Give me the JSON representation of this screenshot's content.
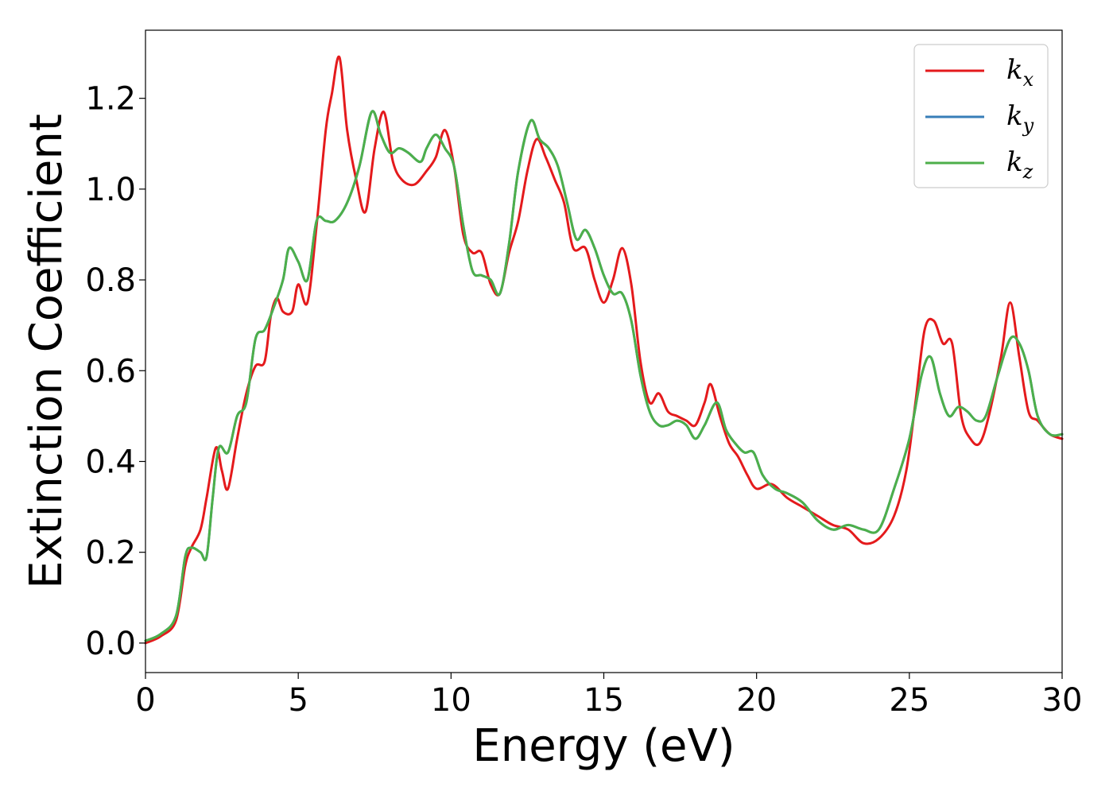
{
  "chart_data": {
    "type": "line",
    "xlabel": "Energy (eV)",
    "ylabel": "Extinction Coefficient",
    "xlim": [
      0,
      30
    ],
    "ylim": [
      -0.065,
      1.35
    ],
    "xticks": [
      0,
      5,
      10,
      15,
      20,
      25,
      30
    ],
    "xtick_labels": [
      "0",
      "5",
      "10",
      "15",
      "20",
      "25",
      "30"
    ],
    "yticks": [
      0.0,
      0.2,
      0.4,
      0.6,
      0.8,
      1.0,
      1.2
    ],
    "ytick_labels": [
      "0.0",
      "0.2",
      "0.4",
      "0.6",
      "0.8",
      "1.0",
      "1.2"
    ],
    "grid": false,
    "legend_position": "top-right",
    "series": [
      {
        "name": "k_x",
        "legend_base": "k",
        "legend_sub": "x",
        "color": "#e41a1c",
        "x": [
          0,
          0.5,
          1.0,
          1.3,
          1.5,
          1.8,
          2.0,
          2.3,
          2.5,
          2.7,
          3.0,
          3.3,
          3.6,
          3.9,
          4.1,
          4.3,
          4.5,
          4.8,
          5.0,
          5.3,
          5.6,
          5.9,
          6.1,
          6.35,
          6.6,
          6.9,
          7.2,
          7.5,
          7.8,
          8.1,
          8.4,
          8.8,
          9.2,
          9.5,
          9.8,
          10.1,
          10.4,
          10.7,
          11.0,
          11.3,
          11.6,
          11.9,
          12.2,
          12.5,
          12.8,
          13.1,
          13.4,
          13.7,
          14.0,
          14.4,
          14.7,
          15.0,
          15.3,
          15.6,
          15.9,
          16.2,
          16.5,
          16.8,
          17.1,
          17.4,
          17.7,
          18.0,
          18.3,
          18.5,
          18.8,
          19.1,
          19.4,
          19.7,
          20.0,
          20.5,
          21.0,
          21.5,
          22.0,
          22.5,
          23.0,
          23.5,
          24.0,
          24.5,
          24.9,
          25.2,
          25.5,
          25.8,
          26.1,
          26.4,
          26.7,
          27.0,
          27.3,
          27.6,
          28.0,
          28.3,
          28.6,
          28.9,
          29.2,
          29.6,
          30.0
        ],
        "y": [
          0.0,
          0.015,
          0.05,
          0.17,
          0.21,
          0.25,
          0.32,
          0.43,
          0.38,
          0.34,
          0.45,
          0.55,
          0.61,
          0.62,
          0.72,
          0.76,
          0.73,
          0.73,
          0.79,
          0.75,
          0.92,
          1.13,
          1.21,
          1.29,
          1.13,
          1.02,
          0.95,
          1.09,
          1.17,
          1.06,
          1.02,
          1.01,
          1.04,
          1.07,
          1.13,
          1.05,
          0.9,
          0.86,
          0.86,
          0.79,
          0.77,
          0.86,
          0.93,
          1.04,
          1.11,
          1.07,
          1.02,
          0.97,
          0.87,
          0.87,
          0.8,
          0.75,
          0.8,
          0.87,
          0.79,
          0.62,
          0.53,
          0.55,
          0.51,
          0.5,
          0.49,
          0.48,
          0.53,
          0.57,
          0.5,
          0.44,
          0.41,
          0.37,
          0.34,
          0.35,
          0.32,
          0.3,
          0.28,
          0.26,
          0.25,
          0.22,
          0.23,
          0.28,
          0.38,
          0.53,
          0.69,
          0.71,
          0.66,
          0.66,
          0.5,
          0.45,
          0.44,
          0.5,
          0.63,
          0.75,
          0.63,
          0.51,
          0.49,
          0.46,
          0.45
        ]
      },
      {
        "name": "k_y",
        "legend_base": "k",
        "legend_sub": "y",
        "color": "#377eb8",
        "x": [
          0,
          0.5,
          1.0,
          1.3,
          1.5,
          1.8,
          2.0,
          2.2,
          2.4,
          2.7,
          3.0,
          3.3,
          3.6,
          3.9,
          4.2,
          4.5,
          4.7,
          5.0,
          5.3,
          5.6,
          5.9,
          6.2,
          6.6,
          7.0,
          7.4,
          7.7,
          8.0,
          8.3,
          8.6,
          9.0,
          9.2,
          9.5,
          9.8,
          10.1,
          10.4,
          10.7,
          11.0,
          11.3,
          11.6,
          11.9,
          12.2,
          12.6,
          12.9,
          13.2,
          13.5,
          13.8,
          14.1,
          14.4,
          14.7,
          15.0,
          15.3,
          15.6,
          15.9,
          16.2,
          16.5,
          16.8,
          17.1,
          17.4,
          17.7,
          18.0,
          18.3,
          18.7,
          19.0,
          19.3,
          19.6,
          19.9,
          20.2,
          20.6,
          21.0,
          21.5,
          22.0,
          22.5,
          23.0,
          23.5,
          24.0,
          24.5,
          25.0,
          25.4,
          25.7,
          26.0,
          26.3,
          26.6,
          26.9,
          27.2,
          27.5,
          27.9,
          28.3,
          28.6,
          28.9,
          29.2,
          29.6,
          30.0
        ],
        "y": [
          0.005,
          0.02,
          0.06,
          0.19,
          0.21,
          0.2,
          0.19,
          0.32,
          0.43,
          0.42,
          0.5,
          0.53,
          0.67,
          0.69,
          0.74,
          0.8,
          0.87,
          0.84,
          0.8,
          0.93,
          0.93,
          0.93,
          0.97,
          1.05,
          1.17,
          1.12,
          1.08,
          1.09,
          1.08,
          1.06,
          1.09,
          1.12,
          1.09,
          1.05,
          0.92,
          0.82,
          0.81,
          0.8,
          0.77,
          0.88,
          1.04,
          1.15,
          1.11,
          1.09,
          1.05,
          0.97,
          0.89,
          0.91,
          0.87,
          0.81,
          0.77,
          0.77,
          0.71,
          0.59,
          0.51,
          0.48,
          0.48,
          0.49,
          0.48,
          0.45,
          0.48,
          0.53,
          0.47,
          0.44,
          0.42,
          0.42,
          0.37,
          0.34,
          0.33,
          0.31,
          0.27,
          0.25,
          0.26,
          0.25,
          0.25,
          0.34,
          0.45,
          0.59,
          0.63,
          0.55,
          0.5,
          0.52,
          0.51,
          0.49,
          0.5,
          0.59,
          0.67,
          0.66,
          0.6,
          0.5,
          0.46,
          0.46
        ]
      },
      {
        "name": "k_z",
        "legend_base": "k",
        "legend_sub": "z",
        "color": "#4daf4a",
        "x": [
          0,
          0.5,
          1.0,
          1.3,
          1.5,
          1.8,
          2.0,
          2.2,
          2.4,
          2.7,
          3.0,
          3.3,
          3.6,
          3.9,
          4.2,
          4.5,
          4.7,
          5.0,
          5.3,
          5.6,
          5.9,
          6.2,
          6.6,
          7.0,
          7.4,
          7.7,
          8.0,
          8.3,
          8.6,
          9.0,
          9.2,
          9.5,
          9.8,
          10.1,
          10.4,
          10.7,
          11.0,
          11.3,
          11.6,
          11.9,
          12.2,
          12.6,
          12.9,
          13.2,
          13.5,
          13.8,
          14.1,
          14.4,
          14.7,
          15.0,
          15.3,
          15.6,
          15.9,
          16.2,
          16.5,
          16.8,
          17.1,
          17.4,
          17.7,
          18.0,
          18.3,
          18.7,
          19.0,
          19.3,
          19.6,
          19.9,
          20.2,
          20.6,
          21.0,
          21.5,
          22.0,
          22.5,
          23.0,
          23.5,
          24.0,
          24.5,
          25.0,
          25.4,
          25.7,
          26.0,
          26.3,
          26.6,
          26.9,
          27.2,
          27.5,
          27.9,
          28.3,
          28.6,
          28.9,
          29.2,
          29.6,
          30.0
        ],
        "y": [
          0.005,
          0.02,
          0.06,
          0.19,
          0.21,
          0.2,
          0.19,
          0.32,
          0.43,
          0.42,
          0.5,
          0.53,
          0.67,
          0.69,
          0.74,
          0.8,
          0.87,
          0.84,
          0.8,
          0.93,
          0.93,
          0.93,
          0.97,
          1.05,
          1.17,
          1.12,
          1.08,
          1.09,
          1.08,
          1.06,
          1.09,
          1.12,
          1.09,
          1.05,
          0.92,
          0.82,
          0.81,
          0.8,
          0.77,
          0.88,
          1.04,
          1.15,
          1.11,
          1.09,
          1.05,
          0.97,
          0.89,
          0.91,
          0.87,
          0.81,
          0.77,
          0.77,
          0.71,
          0.59,
          0.51,
          0.48,
          0.48,
          0.49,
          0.48,
          0.45,
          0.48,
          0.53,
          0.47,
          0.44,
          0.42,
          0.42,
          0.37,
          0.34,
          0.33,
          0.31,
          0.27,
          0.25,
          0.26,
          0.25,
          0.25,
          0.34,
          0.45,
          0.59,
          0.63,
          0.55,
          0.5,
          0.52,
          0.51,
          0.49,
          0.5,
          0.59,
          0.67,
          0.66,
          0.6,
          0.5,
          0.46,
          0.46
        ]
      }
    ]
  }
}
